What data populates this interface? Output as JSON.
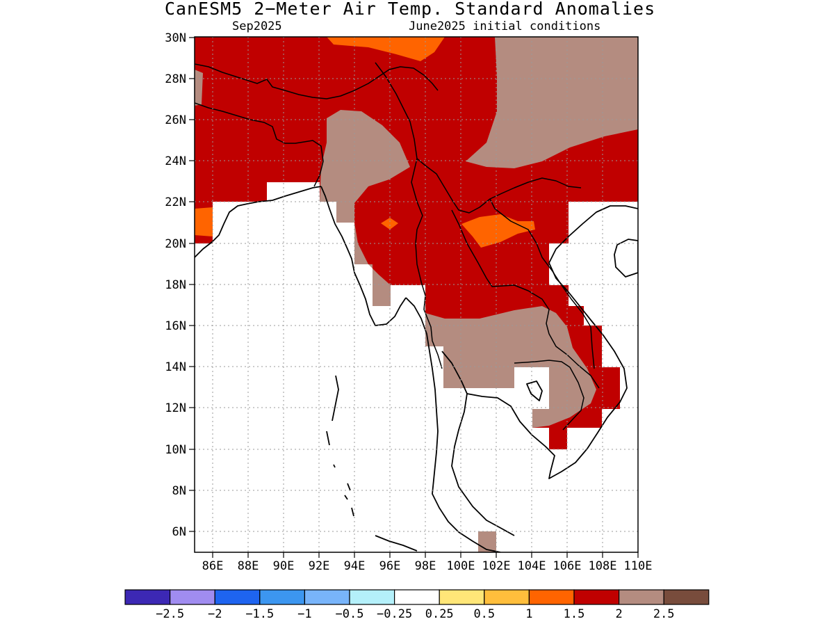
{
  "title": "CanESM5 2−Meter Air Temp. Standard Anomalies",
  "valid_month": "Sep2025",
  "initial_conditions": "June2025 initial conditions",
  "map": {
    "lat_labels": [
      "30N",
      "28N",
      "26N",
      "24N",
      "22N",
      "20N",
      "18N",
      "16N",
      "14N",
      "12N",
      "10N",
      "8N",
      "6N"
    ],
    "lon_labels": [
      "86E",
      "88E",
      "90E",
      "92E",
      "94E",
      "96E",
      "98E",
      "100E",
      "102E",
      "104E",
      "106E",
      "108E",
      "110E"
    ],
    "domain": {
      "lon_min": 85,
      "lon_max": 110,
      "lat_min": 5,
      "lat_max": 30
    },
    "gridlines": "dotted",
    "coastline_color": "#000000"
  },
  "anomaly_regions": [
    {
      "class": "1.5 to 2",
      "color": "#c00000",
      "area": "northern India, Bangladesh, Myanmar, Laos, northern Vietnam, southern China"
    },
    {
      "class": "2 to 2.5",
      "color": "#b48c80",
      "area": "eastern Tibet, Yunnan and southern China; northern Myanmar; Cambodia and central Thailand"
    },
    {
      "class": "1 to 1.5",
      "color": "#ff6400",
      "area": "northern edge near 30N, western Bay of Bengal coast, northern Laos, central Myanmar"
    }
  ],
  "colorbar": {
    "colors": [
      "#3c28b4",
      "#a08cf0",
      "#1e64f0",
      "#3c96f0",
      "#78b4fa",
      "#b4f0fa",
      "#ffffff",
      "#ffe678",
      "#ffbe3c",
      "#ff6400",
      "#c00000",
      "#b48c80",
      "#784c3c"
    ],
    "labels": [
      "−2.5",
      "−2",
      "−1.5",
      "−1",
      "−0.5",
      "−0.25",
      "0.25",
      "0.5",
      "1",
      "1.5",
      "2",
      "2.5"
    ]
  }
}
